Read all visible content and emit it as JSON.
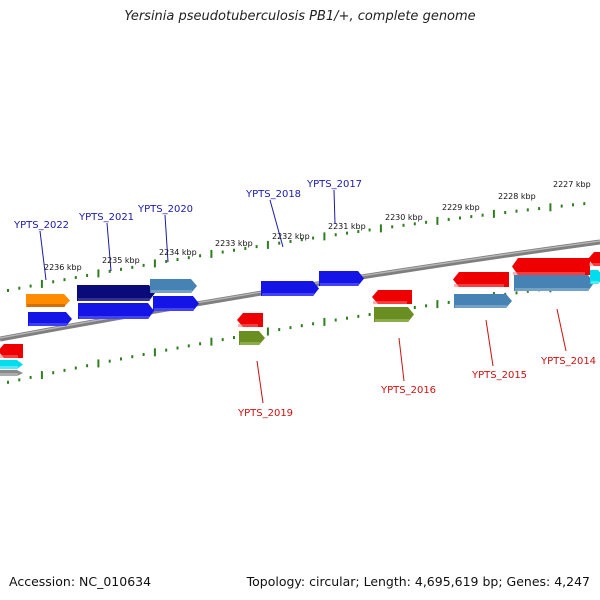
{
  "title": "Yersinia pseudotuberculosis PB1/+, complete genome",
  "footer": {
    "accession": "Accession: NC_010634",
    "summary": "Topology: circular; Length: 4,695,619 bp; Genes: 4,247"
  },
  "colors": {
    "backbone": "#7f7f7f",
    "tick": "#2e7d1f",
    "label_plus": "#1a1aaa",
    "label_minus": "#cc1111"
  },
  "scale_labels": [
    "2236 kbp",
    "2235 kbp",
    "2234 kbp",
    "2233 kbp",
    "2232 kbp",
    "2231 kbp",
    "2230 kbp",
    "2229 kbp",
    "2228 kbp",
    "2227 kbp"
  ],
  "gene_labels": {
    "plus": [
      "YPTS_2022",
      "YPTS_2021",
      "YPTS_2020",
      "YPTS_2018",
      "YPTS_2017"
    ],
    "minus": [
      "YPTS_2019",
      "YPTS_2016",
      "YPTS_2015",
      "YPTS_2014"
    ]
  }
}
